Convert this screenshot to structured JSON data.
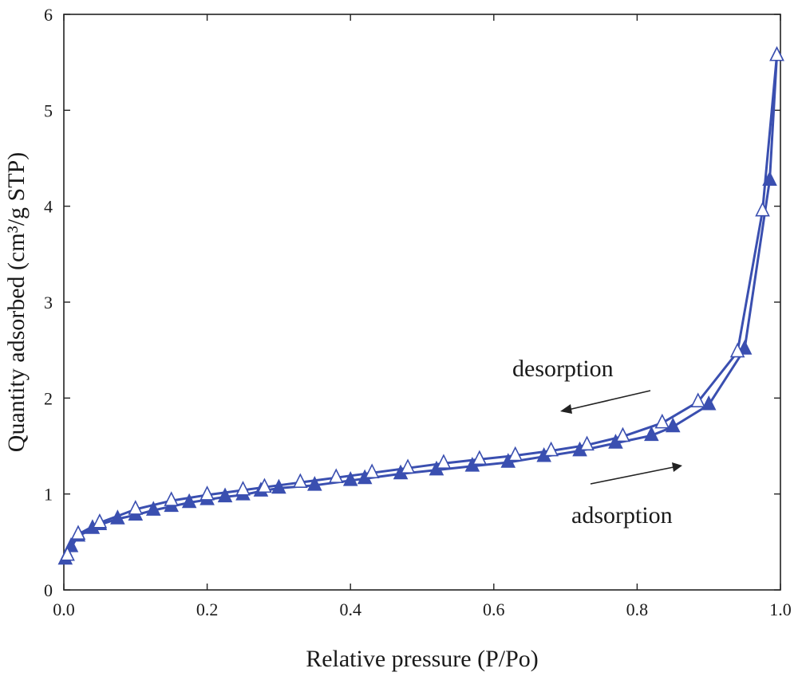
{
  "chart_data": {
    "type": "line",
    "title": "",
    "xlabel": "Relative pressure (P/Po)",
    "ylabel": "Quantity adsorbed (cm³/g STP)",
    "xlim": [
      0.0,
      1.0
    ],
    "ylim": [
      0,
      6
    ],
    "xticks": [
      0.0,
      0.2,
      0.4,
      0.6,
      0.8,
      1.0
    ],
    "xtick_labels": [
      "0.0",
      "0.2",
      "0.4",
      "0.6",
      "0.8",
      "1.0"
    ],
    "yticks": [
      0,
      1,
      2,
      3,
      4,
      5,
      6
    ],
    "ytick_labels": [
      "0",
      "1",
      "2",
      "3",
      "4",
      "5",
      "6"
    ],
    "grid": false,
    "series": [
      {
        "name": "adsorption",
        "marker": "filled-triangle",
        "color": "#3a4fb0",
        "x": [
          0.002,
          0.005,
          0.01,
          0.02,
          0.04,
          0.05,
          0.075,
          0.1,
          0.125,
          0.15,
          0.175,
          0.2,
          0.225,
          0.25,
          0.275,
          0.3,
          0.35,
          0.4,
          0.42,
          0.47,
          0.52,
          0.57,
          0.62,
          0.67,
          0.72,
          0.77,
          0.82,
          0.85,
          0.9,
          0.95,
          0.985,
          0.995
        ],
        "y": [
          0.32,
          0.36,
          0.45,
          0.56,
          0.64,
          0.68,
          0.74,
          0.78,
          0.83,
          0.87,
          0.91,
          0.94,
          0.97,
          0.99,
          1.03,
          1.06,
          1.09,
          1.14,
          1.16,
          1.21,
          1.25,
          1.29,
          1.33,
          1.39,
          1.45,
          1.53,
          1.61,
          1.7,
          1.93,
          2.51,
          4.27,
          5.57
        ]
      },
      {
        "name": "desorption",
        "marker": "open-triangle",
        "color": "#3a4fb0",
        "x": [
          0.995,
          0.975,
          0.94,
          0.885,
          0.835,
          0.78,
          0.73,
          0.68,
          0.63,
          0.58,
          0.53,
          0.48,
          0.43,
          0.38,
          0.33,
          0.28,
          0.25,
          0.2,
          0.15,
          0.1,
          0.05,
          0.02,
          0.005
        ],
        "y": [
          5.57,
          3.95,
          2.48,
          1.96,
          1.74,
          1.6,
          1.51,
          1.45,
          1.4,
          1.36,
          1.32,
          1.27,
          1.22,
          1.17,
          1.12,
          1.07,
          1.04,
          0.99,
          0.93,
          0.84,
          0.7,
          0.58,
          0.36
        ]
      }
    ],
    "annotations": [
      {
        "text": "desorption",
        "arrow_direction": "left",
        "at": [
          0.64,
          1.9
        ]
      },
      {
        "text": "adsorption",
        "arrow_direction": "right",
        "at": [
          0.73,
          0.72
        ]
      }
    ]
  }
}
